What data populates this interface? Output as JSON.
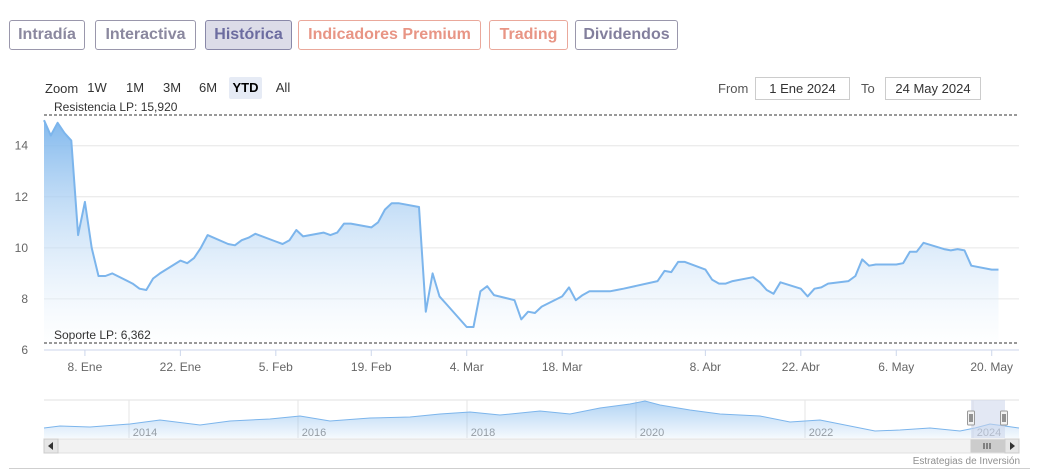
{
  "tabs": [
    {
      "label": "Intradía",
      "style": "grey"
    },
    {
      "label": "Interactiva",
      "style": "grey"
    },
    {
      "label": "Histórica",
      "style": "active"
    },
    {
      "label": "Indicadores Premium",
      "style": "salmon"
    },
    {
      "label": "Trading",
      "style": "salmon"
    },
    {
      "label": "Dividendos",
      "style": "purple"
    }
  ],
  "range_selector": {
    "zoom_label": "Zoom",
    "buttons": [
      "1W",
      "1M",
      "3M",
      "6M",
      "YTD",
      "All"
    ],
    "selected": "YTD",
    "from_label": "From",
    "from_value": "1 Ene 2024",
    "to_label": "To",
    "to_value": "24 May 2024"
  },
  "colors": {
    "line": "#7cb5ec",
    "area_top": "#7cb5ec",
    "area_bottom": "#ffffff",
    "grid": "#e6e6e6",
    "level_line": "#333333",
    "navigator_mask": "#ccd6eb"
  },
  "chart_data": {
    "type": "area",
    "title": "",
    "xlabel": "",
    "ylabel": "",
    "x_range": [
      "2024-01-02",
      "2024-05-24"
    ],
    "ylim": [
      6,
      15.4
    ],
    "y_ticks": [
      6,
      8,
      10,
      12,
      14
    ],
    "x_tick_labels": [
      {
        "date": "2024-01-08",
        "label": "8. Ene"
      },
      {
        "date": "2024-01-22",
        "label": "22. Ene"
      },
      {
        "date": "2024-02-05",
        "label": "5. Feb"
      },
      {
        "date": "2024-02-19",
        "label": "19. Feb"
      },
      {
        "date": "2024-03-04",
        "label": "4. Mar"
      },
      {
        "date": "2024-03-18",
        "label": "18. Mar"
      },
      {
        "date": "2024-04-08",
        "label": "8. Abr"
      },
      {
        "date": "2024-04-22",
        "label": "22. Abr"
      },
      {
        "date": "2024-05-06",
        "label": "6. May"
      },
      {
        "date": "2024-05-20",
        "label": "20. May"
      }
    ],
    "grid": true,
    "plot_lines": [
      {
        "label": "Resistencia LP: 15,920",
        "value": 15.92
      },
      {
        "label": "Soporte LP: 6,362",
        "value": 6.362
      }
    ],
    "series": [
      {
        "points": [
          [
            "2024-01-02",
            15.0
          ],
          [
            "2024-01-03",
            14.4
          ],
          [
            "2024-01-04",
            14.9
          ],
          [
            "2024-01-05",
            14.5
          ],
          [
            "2024-01-06",
            14.2
          ],
          [
            "2024-01-07",
            10.5
          ],
          [
            "2024-01-08",
            11.8
          ],
          [
            "2024-01-09",
            10.0
          ],
          [
            "2024-01-10",
            8.9
          ],
          [
            "2024-01-11",
            8.9
          ],
          [
            "2024-01-12",
            9.0
          ],
          [
            "2024-01-15",
            8.6
          ],
          [
            "2024-01-16",
            8.4
          ],
          [
            "2024-01-17",
            8.35
          ],
          [
            "2024-01-18",
            8.8
          ],
          [
            "2024-01-19",
            9.0
          ],
          [
            "2024-01-22",
            9.5
          ],
          [
            "2024-01-23",
            9.4
          ],
          [
            "2024-01-24",
            9.6
          ],
          [
            "2024-01-25",
            10.0
          ],
          [
            "2024-01-26",
            10.5
          ],
          [
            "2024-01-29",
            10.15
          ],
          [
            "2024-01-30",
            10.1
          ],
          [
            "2024-01-31",
            10.3
          ],
          [
            "2024-02-01",
            10.4
          ],
          [
            "2024-02-02",
            10.55
          ],
          [
            "2024-02-05",
            10.25
          ],
          [
            "2024-02-06",
            10.15
          ],
          [
            "2024-02-07",
            10.3
          ],
          [
            "2024-02-08",
            10.7
          ],
          [
            "2024-02-09",
            10.45
          ],
          [
            "2024-02-12",
            10.6
          ],
          [
            "2024-02-13",
            10.5
          ],
          [
            "2024-02-14",
            10.6
          ],
          [
            "2024-02-15",
            10.95
          ],
          [
            "2024-02-16",
            10.95
          ],
          [
            "2024-02-19",
            10.8
          ],
          [
            "2024-02-20",
            11.0
          ],
          [
            "2024-02-21",
            11.5
          ],
          [
            "2024-02-22",
            11.75
          ],
          [
            "2024-02-23",
            11.75
          ],
          [
            "2024-02-26",
            11.6
          ],
          [
            "2024-02-27",
            7.5
          ],
          [
            "2024-02-28",
            9.0
          ],
          [
            "2024-02-29",
            8.1
          ],
          [
            "2024-03-01",
            7.8
          ],
          [
            "2024-03-04",
            6.9
          ],
          [
            "2024-03-05",
            6.9
          ],
          [
            "2024-03-06",
            8.3
          ],
          [
            "2024-03-07",
            8.5
          ],
          [
            "2024-03-08",
            8.15
          ],
          [
            "2024-03-11",
            7.95
          ],
          [
            "2024-03-12",
            7.2
          ],
          [
            "2024-03-13",
            7.5
          ],
          [
            "2024-03-14",
            7.45
          ],
          [
            "2024-03-15",
            7.7
          ],
          [
            "2024-03-18",
            8.1
          ],
          [
            "2024-03-19",
            8.45
          ],
          [
            "2024-03-20",
            7.95
          ],
          [
            "2024-03-21",
            8.15
          ],
          [
            "2024-03-22",
            8.3
          ],
          [
            "2024-03-25",
            8.3
          ],
          [
            "2024-03-26",
            8.35
          ],
          [
            "2024-03-27",
            8.4
          ],
          [
            "2024-04-01",
            8.7
          ],
          [
            "2024-04-02",
            9.1
          ],
          [
            "2024-04-03",
            9.05
          ],
          [
            "2024-04-04",
            9.45
          ],
          [
            "2024-04-05",
            9.45
          ],
          [
            "2024-04-08",
            9.15
          ],
          [
            "2024-04-09",
            8.75
          ],
          [
            "2024-04-10",
            8.6
          ],
          [
            "2024-04-11",
            8.6
          ],
          [
            "2024-04-12",
            8.7
          ],
          [
            "2024-04-15",
            8.85
          ],
          [
            "2024-04-16",
            8.65
          ],
          [
            "2024-04-17",
            8.35
          ],
          [
            "2024-04-18",
            8.2
          ],
          [
            "2024-04-19",
            8.65
          ],
          [
            "2024-04-22",
            8.4
          ],
          [
            "2024-04-23",
            8.1
          ],
          [
            "2024-04-24",
            8.4
          ],
          [
            "2024-04-25",
            8.45
          ],
          [
            "2024-04-26",
            8.6
          ],
          [
            "2024-04-29",
            8.7
          ],
          [
            "2024-04-30",
            8.9
          ],
          [
            "2024-05-01",
            9.55
          ],
          [
            "2024-05-02",
            9.3
          ],
          [
            "2024-05-03",
            9.35
          ],
          [
            "2024-05-06",
            9.35
          ],
          [
            "2024-05-07",
            9.4
          ],
          [
            "2024-05-08",
            9.85
          ],
          [
            "2024-05-09",
            9.85
          ],
          [
            "2024-05-10",
            10.2
          ],
          [
            "2024-05-13",
            9.95
          ],
          [
            "2024-05-14",
            9.9
          ],
          [
            "2024-05-15",
            9.95
          ],
          [
            "2024-05-16",
            9.9
          ],
          [
            "2024-05-17",
            9.3
          ],
          [
            "2024-05-20",
            9.15
          ],
          [
            "2024-05-21",
            9.15
          ]
        ]
      }
    ],
    "navigator": {
      "x_labels": [
        "2014",
        "2016",
        "2018",
        "2020",
        "2022",
        "2024"
      ],
      "selected_range": [
        "2024-01-02",
        "2024-05-24"
      ]
    }
  },
  "credit": "Estrategias de Inversión"
}
